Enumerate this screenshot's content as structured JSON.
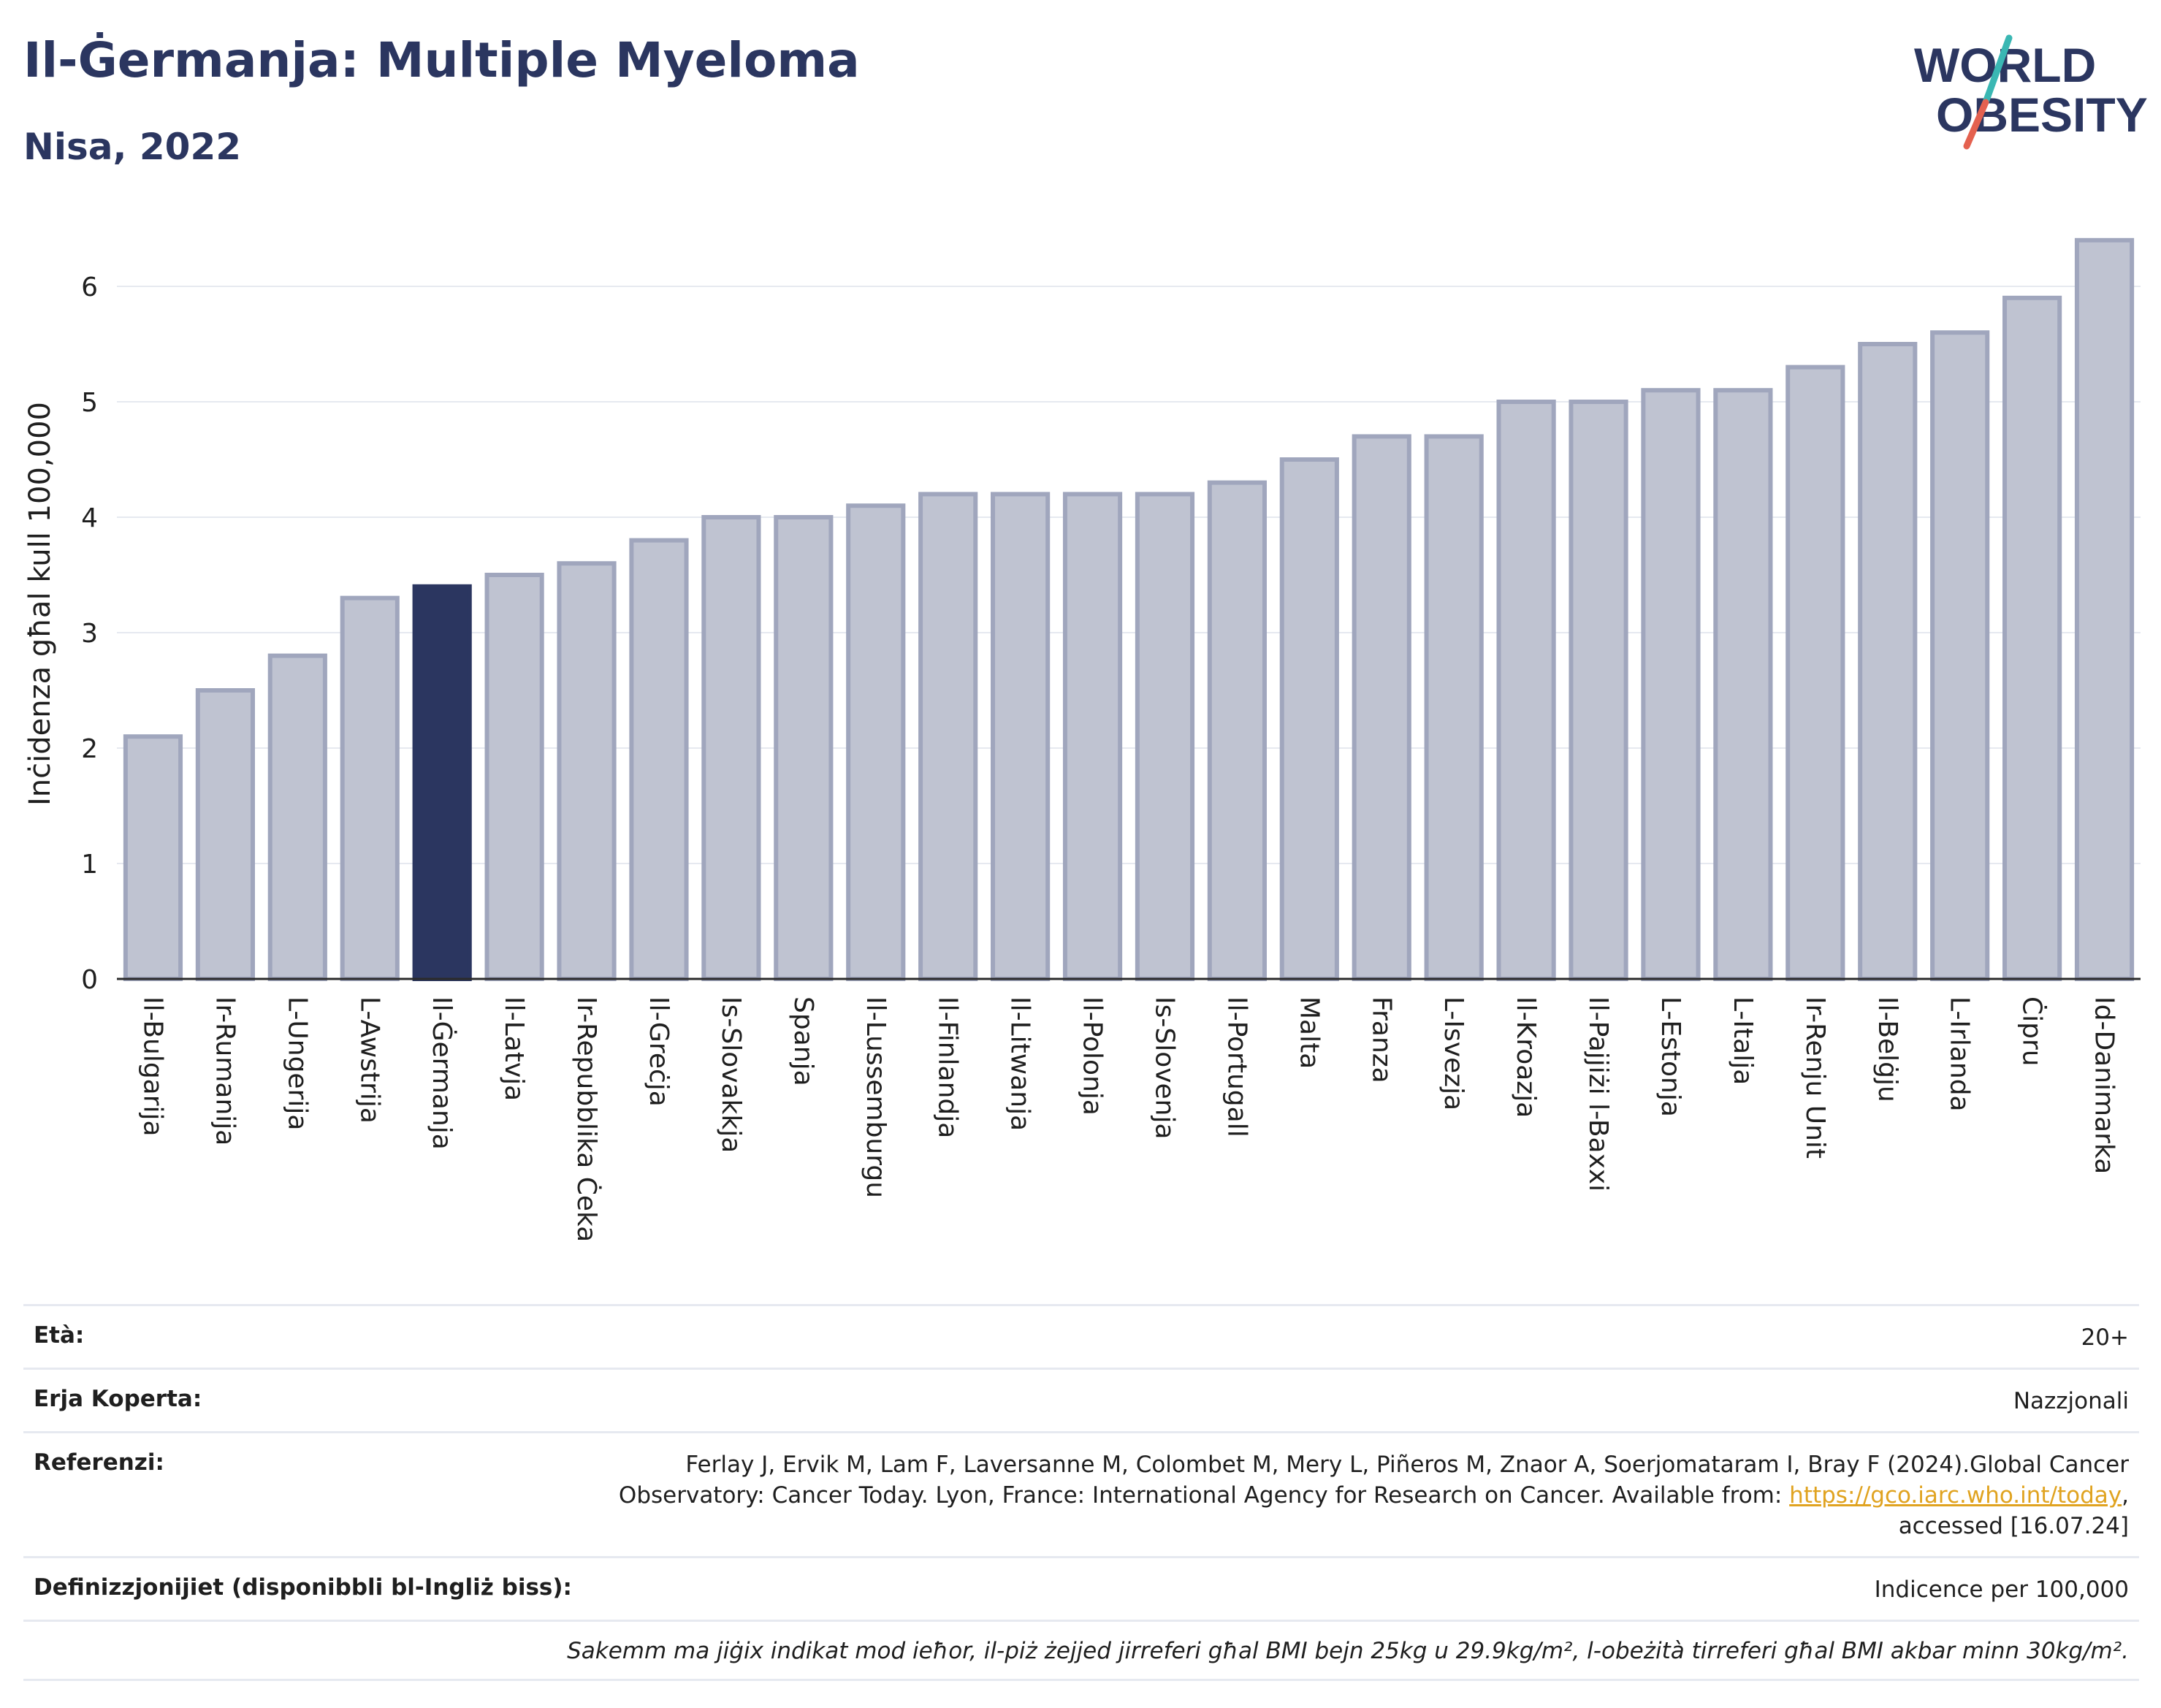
{
  "header": {
    "title": "Il-Ġermanja: Multiple Myeloma",
    "subtitle": "Nisa, 2022",
    "logo_line1": "WORLD",
    "logo_line2": "OBESITY"
  },
  "colors": {
    "bar": "#bfc3d1",
    "bar_stroke": "#a0a6bd",
    "highlight": "#2b3660",
    "grid": "#e6e9f0",
    "axis": "#2b2b2b",
    "logo_teal": "#3ab7b3",
    "logo_red": "#e4614f"
  },
  "chart_data": {
    "type": "bar",
    "ylabel": "Inċidenza għal kull 100,000",
    "ylim": [
      0,
      6.5
    ],
    "yticks": [
      0,
      1,
      2,
      3,
      4,
      5,
      6
    ],
    "grid": true,
    "highlight": "Il-Ġermanja",
    "categories": [
      "Il-Bulgarija",
      "Ir-Rumanija",
      "L-Ungerija",
      "L-Awstrija",
      "Il-Ġermanja",
      "Il-Latvja",
      "Ir-Repubblika Ċeka",
      "Il-Greċja",
      "Is-Slovakkja",
      "Spanja",
      "Il-Lussemburgu",
      "Il-Finlandja",
      "Il-Litwanja",
      "Il-Polonja",
      "Is-Slovenja",
      "Il-Portugall",
      "Malta",
      "Franza",
      "L-Isvezja",
      "Il-Kroazja",
      "Il-Pajjiżi l-Baxxi",
      "L-Estonja",
      "L-Italja",
      "Ir-Renju Unit",
      "Il-Belġju",
      "L-Irlanda",
      "Ċipru",
      "Id-Danimarka"
    ],
    "values": [
      2.1,
      2.5,
      2.8,
      3.3,
      3.4,
      3.5,
      3.6,
      3.8,
      4.0,
      4.0,
      4.1,
      4.2,
      4.2,
      4.2,
      4.2,
      4.3,
      4.5,
      4.7,
      4.7,
      5.0,
      5.0,
      5.1,
      5.1,
      5.3,
      5.5,
      5.6,
      5.9,
      6.4
    ]
  },
  "meta": {
    "age_label": "Età:",
    "age_value": "20+",
    "area_label": "Erja Koperta:",
    "area_value": "Nazzjonali",
    "ref_label": "Referenzi:",
    "ref_text1": "Ferlay J, Ervik M, Lam F, Laversanne M, Colombet M, Mery L, Piñeros M, Znaor A, Soerjomataram I, Bray F (2024).Global Cancer",
    "ref_text2": "Observatory: Cancer Today. Lyon, France: International Agency for Research on Cancer. Available from: ",
    "ref_link": "https://gco.iarc.who.int/today",
    "ref_text3": ",",
    "ref_text4": "accessed [16.07.24]",
    "def_label": "Definizzjonijiet (disponibbli bl-Ingliż biss):",
    "def_value": "Indicence per 100,000",
    "note": "Sakemm ma jiġix indikat mod ieħor, il-piż żejjed jirreferi għal BMI bejn 25kg u 29.9kg/m², l-obeżità tirreferi għal BMI akbar minn 30kg/m²."
  }
}
